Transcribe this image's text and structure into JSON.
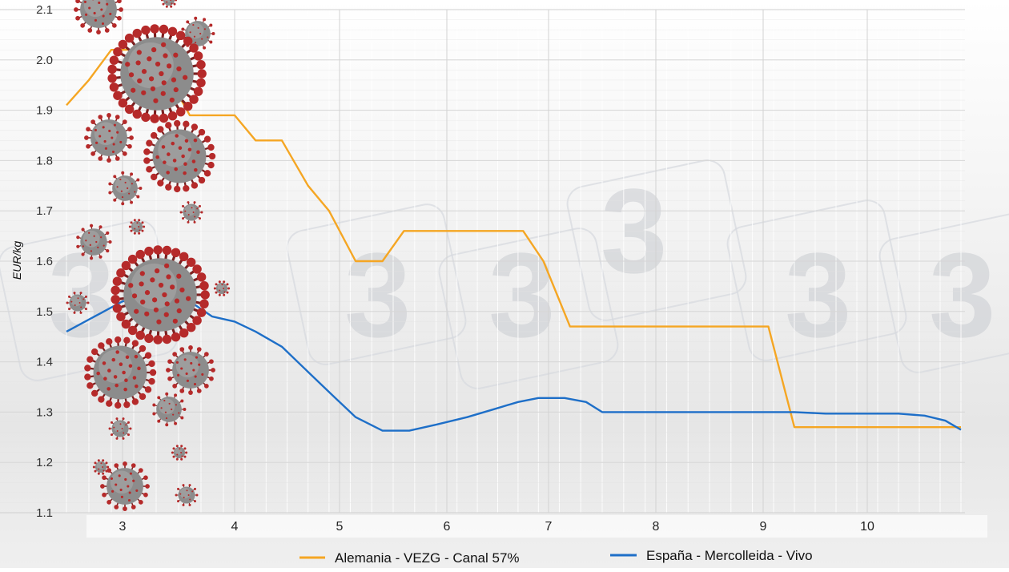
{
  "chart_data": {
    "type": "line",
    "title": "",
    "xlabel": "",
    "ylabel": "EUR/kg",
    "xlim": [
      2.5,
      10.9
    ],
    "ylim": [
      1.1,
      2.1
    ],
    "x_ticks": [
      "3",
      "4",
      "5",
      "6",
      "7",
      "8",
      "9",
      "10"
    ],
    "y_ticks": [
      "1.1",
      "1.2",
      "1.3",
      "1.4",
      "1.5",
      "1.6",
      "1.7",
      "1.8",
      "1.9",
      "2.0",
      "2.1"
    ],
    "grid": true,
    "legend_position": "bottom",
    "watermark_text": "3",
    "series": [
      {
        "name": "Alemania - VEZG - Canal 57%",
        "color": "#f5a623",
        "points": [
          [
            2.5,
            1.91
          ],
          [
            2.7,
            1.96
          ],
          [
            2.9,
            2.02
          ],
          [
            3.1,
            2.02
          ],
          [
            3.4,
            1.97
          ],
          [
            3.6,
            1.89
          ],
          [
            4.0,
            1.89
          ],
          [
            4.2,
            1.84
          ],
          [
            4.45,
            1.84
          ],
          [
            4.7,
            1.75
          ],
          [
            4.9,
            1.7
          ],
          [
            5.15,
            1.6
          ],
          [
            5.4,
            1.6
          ],
          [
            5.6,
            1.66
          ],
          [
            5.9,
            1.66
          ],
          [
            6.3,
            1.66
          ],
          [
            6.75,
            1.66
          ],
          [
            6.95,
            1.6
          ],
          [
            7.2,
            1.47
          ],
          [
            7.6,
            1.47
          ],
          [
            8.2,
            1.47
          ],
          [
            8.7,
            1.47
          ],
          [
            9.05,
            1.47
          ],
          [
            9.3,
            1.27
          ],
          [
            9.8,
            1.27
          ],
          [
            10.4,
            1.27
          ],
          [
            10.9,
            1.27
          ]
        ]
      },
      {
        "name": "España - Mercolleida - Vivo",
        "color": "#1e6fc8",
        "points": [
          [
            2.5,
            1.46
          ],
          [
            2.75,
            1.49
          ],
          [
            3.0,
            1.52
          ],
          [
            3.3,
            1.53
          ],
          [
            3.6,
            1.52
          ],
          [
            3.8,
            1.49
          ],
          [
            4.0,
            1.48
          ],
          [
            4.2,
            1.46
          ],
          [
            4.45,
            1.43
          ],
          [
            4.7,
            1.38
          ],
          [
            4.95,
            1.33
          ],
          [
            5.15,
            1.29
          ],
          [
            5.4,
            1.263
          ],
          [
            5.65,
            1.263
          ],
          [
            5.9,
            1.275
          ],
          [
            6.2,
            1.29
          ],
          [
            6.45,
            1.305
          ],
          [
            6.7,
            1.32
          ],
          [
            6.9,
            1.328
          ],
          [
            7.15,
            1.328
          ],
          [
            7.35,
            1.32
          ],
          [
            7.5,
            1.3
          ],
          [
            7.9,
            1.3
          ],
          [
            8.4,
            1.3
          ],
          [
            8.9,
            1.3
          ],
          [
            9.3,
            1.3
          ],
          [
            9.6,
            1.297
          ],
          [
            10.0,
            1.297
          ],
          [
            10.3,
            1.297
          ],
          [
            10.55,
            1.293
          ],
          [
            10.75,
            1.283
          ],
          [
            10.9,
            1.265
          ]
        ]
      }
    ]
  },
  "decor": {
    "background_image": "coronavirus-particles",
    "virus_color": "#b52a2a",
    "virus_core_color": "#8c8c8c"
  }
}
